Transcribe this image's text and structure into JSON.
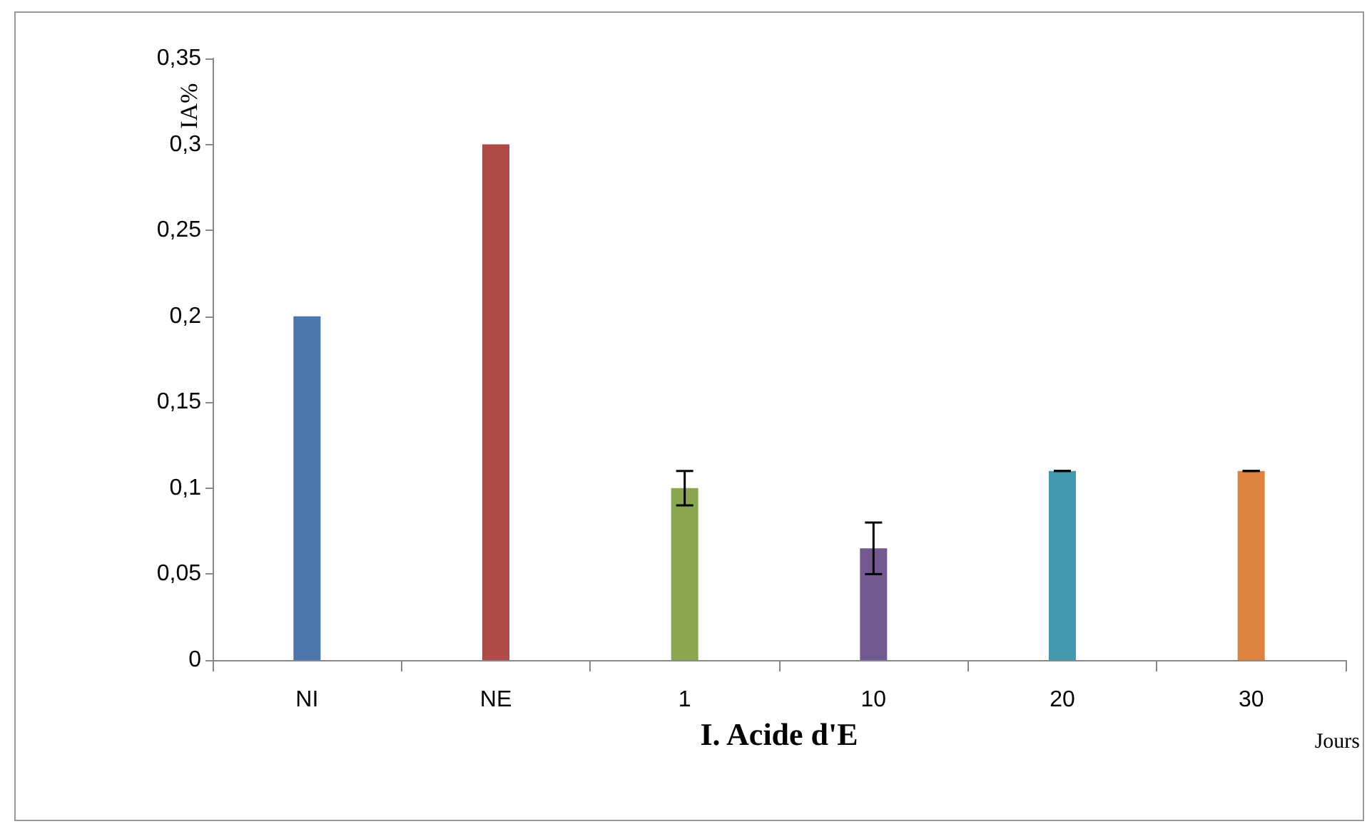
{
  "chart_data": {
    "type": "bar",
    "xlabel": "I. Acide d'E",
    "ylabel": "IA%",
    "categories": [
      "NI",
      "NE",
      "1",
      "10",
      "20",
      "30"
    ],
    "values": [
      0.2,
      0.3,
      0.1,
      0.065,
      0.11,
      0.11
    ],
    "colors": [
      "#4a76ab",
      "#ae4a47",
      "#8aa64e",
      "#725a90",
      "#4299af",
      "#dc843f"
    ],
    "errors": [
      null,
      null,
      [
        0.09,
        0.11
      ],
      [
        0.05,
        0.08
      ],
      0,
      0
    ],
    "ylim": [
      0,
      0.35
    ],
    "yticks": [
      {
        "value": 0,
        "label": "0"
      },
      {
        "value": 0.05,
        "label": "0,05"
      },
      {
        "value": 0.1,
        "label": "0,1"
      },
      {
        "value": 0.15,
        "label": "0,15"
      },
      {
        "value": 0.2,
        "label": "0,2"
      },
      {
        "value": 0.25,
        "label": "0,25"
      },
      {
        "value": 0.3,
        "label": "0,3"
      },
      {
        "value": 0.35,
        "label": "0,35"
      }
    ],
    "annotations": [
      "Jours"
    ],
    "grid": false
  }
}
